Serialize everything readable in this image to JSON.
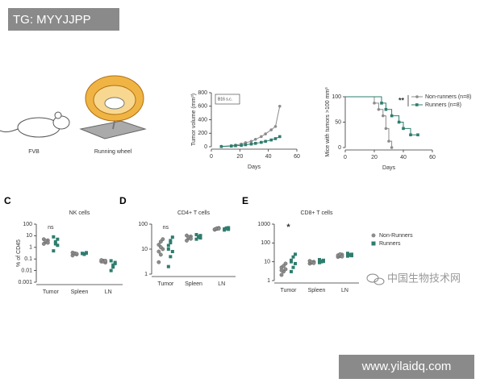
{
  "illustrations": {
    "mouse": "FVB",
    "wheel": "Running wheel"
  },
  "watermarks": {
    "top": "TG: MYYJJPP",
    "logo": "中国生物技术网",
    "bottom": "www.yilaidq.com"
  },
  "chart_data": [
    {
      "type": "line",
      "ylabel": "Tumor volume (mm³)",
      "xlabel": "Days",
      "annotation": "B16 s.c.",
      "xlim": [
        0,
        60
      ],
      "xticks": [
        0,
        20,
        40,
        60
      ],
      "ylim": [
        0,
        800
      ],
      "yticks": [
        0,
        200,
        400,
        600,
        800
      ],
      "series": [
        {
          "name": "Non-runners",
          "color": "#8c8c8c",
          "x": [
            7,
            14,
            17,
            21,
            24,
            28,
            31,
            35,
            38,
            42,
            45,
            48
          ],
          "values": [
            5,
            15,
            25,
            40,
            60,
            80,
            110,
            150,
            190,
            250,
            300,
            600
          ]
        },
        {
          "name": "Runners",
          "color": "#2e7d6e",
          "x": [
            7,
            14,
            17,
            21,
            24,
            28,
            31,
            35,
            38,
            42,
            45,
            48
          ],
          "values": [
            3,
            10,
            15,
            20,
            30,
            40,
            50,
            65,
            80,
            100,
            120,
            150
          ]
        }
      ]
    },
    {
      "type": "step",
      "ylabel": "Mice with tumors >100 mm³",
      "xlabel": "Days",
      "annotation": "**",
      "legend": "upper right",
      "xlim": [
        0,
        60
      ],
      "xticks": [
        0,
        20,
        40,
        60
      ],
      "ylim": [
        0,
        100
      ],
      "yticks": [
        0,
        50,
        100
      ],
      "series": [
        {
          "name": "Non-runners (n=8)",
          "color": "#8c8c8c",
          "x": [
            0,
            20,
            23,
            26,
            28,
            30,
            32
          ],
          "values": [
            100,
            87.5,
            75,
            62.5,
            37.5,
            12.5,
            0
          ]
        },
        {
          "name": "Runners (n=8)",
          "color": "#2e7d6e",
          "x": [
            0,
            25,
            28,
            32,
            37,
            40,
            45,
            50
          ],
          "values": [
            100,
            87.5,
            75,
            62.5,
            50,
            37.5,
            25,
            25
          ]
        }
      ]
    },
    {
      "type": "dot",
      "panel": "C",
      "title": "NK cells",
      "ylabel": "% of CD45",
      "annotation": "ns",
      "log": true,
      "categories": [
        "Tumor",
        "Spleen",
        "LN"
      ],
      "ylim": [
        0.001,
        100
      ],
      "yticks": [
        0.001,
        0.01,
        0.1,
        1,
        10,
        100
      ],
      "series": [
        {
          "name": "Non-Runners",
          "color": "#8c8c8c",
          "values": [
            [
              2,
              3,
              4,
              5,
              3.5,
              2.5
            ],
            [
              0.2,
              0.3,
              0.25,
              0.35,
              0.3,
              0.28
            ],
            [
              0.06,
              0.07,
              0.05,
              0.08,
              0.06,
              0.07
            ]
          ]
        },
        {
          "name": "Runners",
          "color": "#2e7d6e",
          "values": [
            [
              0.5,
              2,
              5,
              8,
              3,
              1.5
            ],
            [
              0.3,
              0.25,
              0.35,
              0.3,
              0.28,
              0.32
            ],
            [
              0.01,
              0.03,
              0.05,
              0.07,
              0.02,
              0.04
            ]
          ]
        }
      ]
    },
    {
      "type": "dot",
      "panel": "D",
      "title": "CD4+ T cells",
      "annotation": "ns",
      "log": true,
      "categories": [
        "Tumor",
        "Spleen",
        "LN"
      ],
      "ylim": [
        1,
        100
      ],
      "yticks": [
        1,
        10,
        100
      ],
      "series": [
        {
          "name": "Non-Runners",
          "color": "#8c8c8c",
          "values": [
            [
              3,
              6,
              10,
              15,
              20,
              25,
              8,
              12
            ],
            [
              22,
              28,
              32,
              35,
              30,
              26
            ],
            [
              60,
              65,
              70,
              62,
              68,
              66
            ]
          ]
        },
        {
          "name": "Runners",
          "color": "#2e7d6e",
          "values": [
            [
              2,
              5,
              8,
              14,
              22,
              30,
              10,
              18
            ],
            [
              25,
              30,
              35,
              38,
              32,
              28
            ],
            [
              58,
              66,
              72,
              64,
              70,
              62
            ]
          ]
        }
      ]
    },
    {
      "type": "dot",
      "panel": "E",
      "title": "CD8+ T cells",
      "annotation": "*",
      "legend": "right",
      "log": true,
      "categories": [
        "Tumor",
        "Spleen",
        "LN"
      ],
      "ylim": [
        1,
        1000
      ],
      "yticks": [
        1,
        10,
        100,
        1000
      ],
      "series": [
        {
          "name": "Non-Runners",
          "color": "#8c8c8c",
          "values": [
            [
              2,
              3,
              4,
              5,
              6,
              8,
              3.5
            ],
            [
              8,
              9,
              10,
              11,
              9.5,
              8.5
            ],
            [
              18,
              20,
              24,
              22,
              25,
              19
            ]
          ]
        },
        {
          "name": "Runners",
          "color": "#2e7d6e",
          "values": [
            [
              3,
              5,
              8,
              12,
              18,
              25,
              10
            ],
            [
              9,
              10,
              12,
              13,
              11,
              10.5
            ],
            [
              20,
              22,
              25,
              28,
              24,
              21
            ]
          ]
        }
      ]
    }
  ]
}
